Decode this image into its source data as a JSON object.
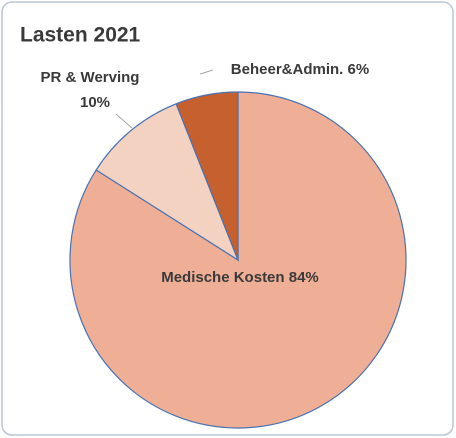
{
  "chart_data": {
    "type": "pie",
    "title": "Lasten 2021",
    "categories": [
      "Medische Kosten",
      "PR & Werving",
      "Beheer&Admin."
    ],
    "values": [
      84,
      10,
      6
    ],
    "value_labels": [
      "84%",
      "10%",
      "6%"
    ],
    "colors": [
      "#efae96",
      "#f3d2c1",
      "#c6602f"
    ]
  }
}
